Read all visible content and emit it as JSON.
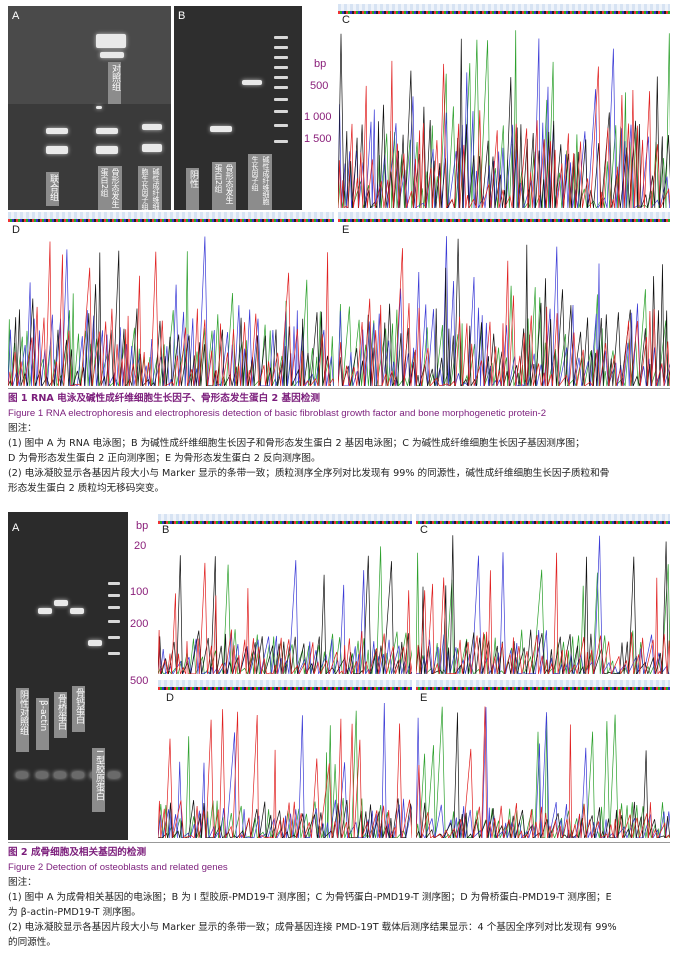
{
  "figure1": {
    "panels": {
      "A": {
        "letter": "A",
        "labels": [
          "联合组",
          "骨形态发生蛋白2组",
          "碱性成纤维细胞生长因子组",
          "对照组"
        ]
      },
      "B": {
        "letter": "B",
        "labels": [
          "阴性",
          "骨形态发生蛋白2组",
          "碱性成纤维细胞生长因子组"
        ]
      },
      "C": {
        "letter": "C",
        "bp_unit": "bp",
        "bp_marks": [
          "500",
          "1 000",
          "1 500"
        ]
      },
      "D": {
        "letter": "D"
      },
      "E": {
        "letter": "E"
      }
    },
    "caption": {
      "title_cn": "图 1   RNA 电泳及碱性成纤维细胞生长因子、骨形态发生蛋白 2 基因检测",
      "title_en": "Figure 1   RNA electrophoresis and electrophoresis detection of basic fibroblast growth factor and bone morphogenetic protein-2",
      "note_label": "图注：",
      "note1": "(1) 图中 A 为 RNA 电泳图；B 为碱性成纤维细胞生长因子和骨形态发生蛋白 2 基因电泳图；C 为碱性成纤维细胞生长因子基因测序图；",
      "note1b": "D 为骨形态发生蛋白 2 正向测序图；E 为骨形态发生蛋白 2 反向测序图。",
      "note2": "(2) 电泳凝胶显示各基因片段大小与 Marker 显示的条带一致；质粒测序全序列对比发现有 99% 的同源性，碱性成纤维细胞生长因子质粒和骨",
      "note2b": "形态发生蛋白 2 质粒均无移码突变。"
    }
  },
  "figure2": {
    "panels": {
      "A": {
        "letter": "A",
        "labels": [
          "阴性对照组",
          "β-actin",
          "骨桥蛋白",
          "骨钙蛋白",
          "I 型胶原蛋白"
        ]
      },
      "B": {
        "letter": "B",
        "bp_unit": "bp",
        "bp_marks": [
          "20",
          "100",
          "200",
          "500"
        ]
      },
      "C": {
        "letter": "C"
      },
      "D": {
        "letter": "D"
      },
      "E": {
        "letter": "E"
      }
    },
    "caption": {
      "title_cn": "图 2   成骨细胞及相关基因的检测",
      "title_en": "Figure 2   Detection of osteoblasts and related genes",
      "note_label": "图注：",
      "note1": "(1) 图中 A 为成骨相关基因的电泳图；B 为 I 型胶原-PMD19-T 测序图；C 为骨钙蛋白-PMD19-T 测序图；D 为骨桥蛋白-PMD19-T 测序图；E",
      "note1b": "为 β-actin-PMD19-T 测序图。",
      "note2": "(2) 电泳凝胶显示各基因片段大小与 Marker 显示的条带一致；成骨基因连接 PMD-19T 载体后测序结果显示：4 个基因全序列对比发现有 99%",
      "note2b": "的同源性。"
    }
  },
  "colors": {
    "caption_accent": "#7b1d7b",
    "bp_label": "#8a1f7a",
    "trace_A": "#2ca02c",
    "trace_C": "#3b3bd6",
    "trace_G": "#111111",
    "trace_T": "#e02020"
  }
}
